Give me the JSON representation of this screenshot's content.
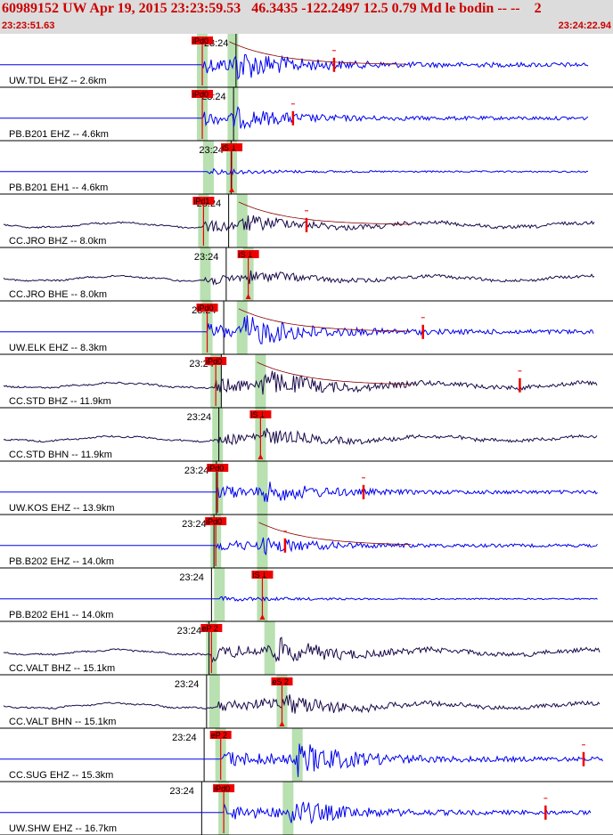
{
  "header": {
    "title": "60989152 UW Apr 19, 2015 23:23:59.53   46.3435 -122.2497 12.5 0.79 Md le bodin -- --    2",
    "start_time": "23:23:51.63",
    "end_time": "23:24:22.94"
  },
  "colors": {
    "header_text": "#cc0000",
    "trace_blue": "#0000ee",
    "trace_dark": "#1a0a4a",
    "pick": "#ee0000",
    "band": "#b8e0b0"
  },
  "tick_label": "23:24",
  "traces": [
    {
      "label": "UW.TDL EHZ -- 2.6km",
      "color": "blue",
      "flat": true,
      "pick": "iPd0",
      "pick_type": "P",
      "p": 0.33,
      "s": 0.38,
      "end": 0.96,
      "amp": 1.0,
      "coda": 0.545,
      "c": 0,
      "k": 1
    },
    {
      "label": "PB.B201 EHZ -- 4.6km",
      "color": "blue",
      "flat": true,
      "pick": "iPd0",
      "pick_type": "P",
      "p": 0.33,
      "s": 0.38,
      "end": 0.96,
      "amp": 0.8,
      "coda": 0.478,
      "c": 1,
      "k": 0
    },
    {
      "label": "PB.B201 EH1 -- 4.6km",
      "color": "blue",
      "flat": true,
      "pick": "iS 1",
      "pick_type": "S",
      "p": 0.34,
      "s": 0.378,
      "end": 0.96,
      "amp": 0.35,
      "coda": null,
      "c": 0,
      "k": 0
    },
    {
      "label": "CC.JRO BHZ -- 8.0km",
      "color": "dark",
      "flat": false,
      "pick": "iPd1",
      "pick_type": "P",
      "p": 0.332,
      "s": 0.395,
      "end": 0.97,
      "amp": 0.7,
      "coda": 0.5,
      "c": 1,
      "k": 1
    },
    {
      "label": "CC.JRO BHE -- 8.0km",
      "color": "dark",
      "flat": false,
      "pick": "iS 1",
      "pick_type": "S",
      "p": 0.335,
      "s": 0.405,
      "end": 0.97,
      "amp": 0.6,
      "coda": null,
      "c": 0,
      "k": 0
    },
    {
      "label": "UW.ELK EHZ -- 8.3km",
      "color": "blue",
      "flat": true,
      "pick": "iPd0",
      "pick_type": "P",
      "p": 0.338,
      "s": 0.395,
      "end": 0.97,
      "amp": 1.0,
      "coda": 0.69,
      "c": 1,
      "k": 1
    },
    {
      "label": "CC.STD BHZ -- 11.9km",
      "color": "dark",
      "flat": false,
      "pick": "iPd0",
      "pick_type": "P",
      "p": 0.352,
      "s": 0.425,
      "end": 0.975,
      "amp": 0.9,
      "coda": 0.848,
      "c": 0,
      "k": 1
    },
    {
      "label": "CC.STD BHN -- 11.9km",
      "color": "dark",
      "flat": false,
      "pick": "iS 1",
      "pick_type": "S",
      "p": 0.355,
      "s": 0.425,
      "end": 0.975,
      "amp": 0.7,
      "coda": null,
      "c": 1,
      "k": 0
    },
    {
      "label": "UW.KOS EHZ -- 13.9km",
      "color": "blue",
      "flat": true,
      "pick": "iPd0",
      "pick_type": "P",
      "p": 0.355,
      "s": 0.428,
      "end": 0.975,
      "amp": 0.8,
      "coda": 0.593,
      "c": 0,
      "k": 0
    },
    {
      "label": "PB.B202 EHZ -- 14.0km",
      "color": "blue",
      "flat": true,
      "pick": "iPd0",
      "pick_type": "P",
      "p": 0.352,
      "s": 0.428,
      "end": 0.975,
      "amp": 0.7,
      "coda": 0.465,
      "c": 1,
      "k": 1
    },
    {
      "label": "PB.B202 EH1 -- 14.0km",
      "color": "blue",
      "flat": true,
      "pick": "iS 1",
      "pick_type": "S",
      "p": 0.358,
      "s": 0.428,
      "end": 0.975,
      "amp": 0.3,
      "coda": null,
      "c": 0,
      "k": 0
    },
    {
      "label": "CC.VALT BHZ -- 15.1km",
      "color": "dark",
      "flat": false,
      "pick": "eP 2",
      "pick_type": "P",
      "p": 0.345,
      "s": 0.44,
      "end": 0.98,
      "amp": 0.9,
      "coda": null,
      "c": 1,
      "k": 0
    },
    {
      "label": "CC.VALT BHN -- 15.1km",
      "color": "dark",
      "flat": false,
      "pick": "eS 2",
      "pick_type": "S",
      "p": 0.35,
      "s": 0.46,
      "end": 0.98,
      "amp": 0.8,
      "coda": null,
      "c": 0,
      "k": 0
    },
    {
      "label": "CC.SUG EHZ -- 15.3km",
      "color": "blue",
      "flat": true,
      "pick": "eP 2",
      "pick_type": "P",
      "p": 0.36,
      "s": 0.485,
      "end": 0.985,
      "amp": 1.0,
      "coda": 0.952,
      "c": 1,
      "k": 0
    },
    {
      "label": "UW.SHW EHZ -- 16.7km",
      "color": "blue",
      "flat": true,
      "pick": "iPd0",
      "pick_type": "P",
      "p": 0.365,
      "s": 0.47,
      "end": 0.965,
      "amp": 0.9,
      "coda": 0.89,
      "c": 0,
      "k": 0
    }
  ]
}
